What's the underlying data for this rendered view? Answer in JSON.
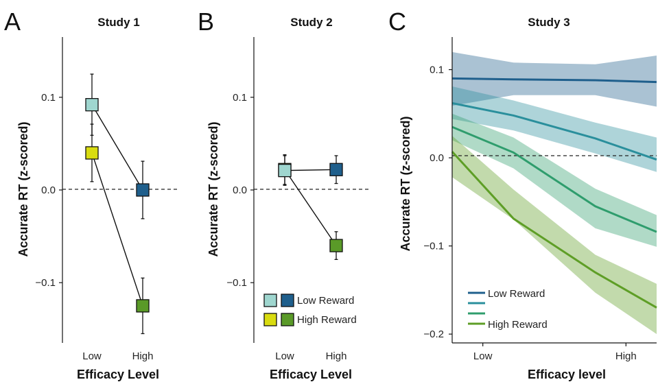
{
  "figure": {
    "panels": [
      "A",
      "B",
      "C"
    ]
  },
  "chart_data": [
    {
      "type": "line",
      "panel": "A",
      "title": "Study 1",
      "xlabel": "Efficacy Level",
      "ylabel": "Accurate RT (z-scored)",
      "categories": [
        "Low",
        "High"
      ],
      "ylim": [
        -0.165,
        0.165
      ],
      "yticks": [
        -0.1,
        0.0,
        0.1
      ],
      "ytick_labels": [
        "−0.1",
        "0.0",
        "0.1"
      ],
      "zero_line": true,
      "series": [
        {
          "color_low": "#9fd6cf",
          "color_high": "#1f5f8c",
          "values": [
            0.092,
            0.0
          ],
          "errors": [
            0.033,
            0.031
          ]
        },
        {
          "color_low": "#d9dc10",
          "color_high": "#5a9a28",
          "values": [
            0.04,
            -0.125
          ],
          "errors": [
            0.031,
            0.03
          ]
        }
      ]
    },
    {
      "type": "line",
      "panel": "B",
      "title": "Study 2",
      "xlabel": "Efficacy Level",
      "ylabel": "Accurate RT (z-scored)",
      "categories": [
        "Low",
        "High"
      ],
      "ylim": [
        -0.165,
        0.165
      ],
      "yticks": [
        -0.1,
        0.0,
        0.1
      ],
      "ytick_labels": [
        "−0.1",
        "0.0",
        "0.1"
      ],
      "zero_line": true,
      "series": [
        {
          "color_low": "#9fd6cf",
          "color_high": "#1f5f8c",
          "values": [
            0.021,
            0.022
          ],
          "errors": [
            0.016,
            0.015
          ]
        },
        {
          "color_low": "#d9dc10",
          "color_high": "#5a9a28",
          "values": [
            0.022,
            -0.06
          ],
          "errors": [
            0.016,
            0.015
          ]
        }
      ],
      "legend": {
        "placement": "bottom-right",
        "entries": [
          {
            "label": "Low Reward",
            "colors": [
              "#9fd6cf",
              "#1f5f8c"
            ]
          },
          {
            "label": "High Reward",
            "colors": [
              "#d9dc10",
              "#5a9a28"
            ]
          }
        ]
      }
    },
    {
      "type": "area",
      "panel": "C",
      "title": "Study 3",
      "xlabel": "Efficacy level",
      "ylabel": "Accurate RT (z-scored)",
      "xlim": [
        0,
        1
      ],
      "xticks": [
        0.15,
        0.85
      ],
      "xtick_labels": [
        "Low",
        "High"
      ],
      "ylim": [
        -0.21,
        0.137
      ],
      "yticks": [
        -0.2,
        -0.1,
        0.0,
        0.1
      ],
      "ytick_labels": [
        "−0.2",
        "−0.1",
        "0.0",
        "0.1"
      ],
      "zero_line": true,
      "series": [
        {
          "color": "#1f5f8c",
          "x": [
            0,
            0.3,
            0.7,
            1
          ],
          "y": [
            0.09,
            0.089,
            0.088,
            0.086
          ],
          "lower": [
            0.059,
            0.071,
            0.071,
            0.058
          ],
          "upper": [
            0.12,
            0.108,
            0.106,
            0.116
          ]
        },
        {
          "color": "#2a8f9c",
          "x": [
            0,
            0.3,
            0.7,
            1
          ],
          "y": [
            0.062,
            0.048,
            0.022,
            -0.002
          ],
          "lower": [
            0.044,
            0.031,
            0.005,
            -0.016
          ],
          "upper": [
            0.081,
            0.065,
            0.04,
            0.023
          ]
        },
        {
          "color": "#2f9d6d",
          "x": [
            0,
            0.3,
            0.7,
            1
          ],
          "y": [
            0.035,
            0.006,
            -0.055,
            -0.084
          ],
          "lower": [
            0.02,
            -0.012,
            -0.08,
            -0.101
          ],
          "upper": [
            0.05,
            0.023,
            -0.035,
            -0.065
          ]
        },
        {
          "color": "#5e9e26",
          "x": [
            0,
            0.3,
            0.7,
            1
          ],
          "y": [
            0.007,
            -0.069,
            -0.13,
            -0.17
          ],
          "lower": [
            -0.022,
            -0.07,
            -0.153,
            -0.2
          ],
          "upper": [
            0.025,
            -0.036,
            -0.11,
            -0.143
          ]
        }
      ],
      "legend": {
        "placement": "bottom-left",
        "entries": [
          {
            "label": "Low Reward",
            "color": "#1f5f8c"
          },
          {
            "label": "",
            "color": "#2a8f9c"
          },
          {
            "label": "",
            "color": "#2f9d6d"
          },
          {
            "label": "High Reward",
            "color": "#5e9e26"
          }
        ]
      }
    }
  ]
}
